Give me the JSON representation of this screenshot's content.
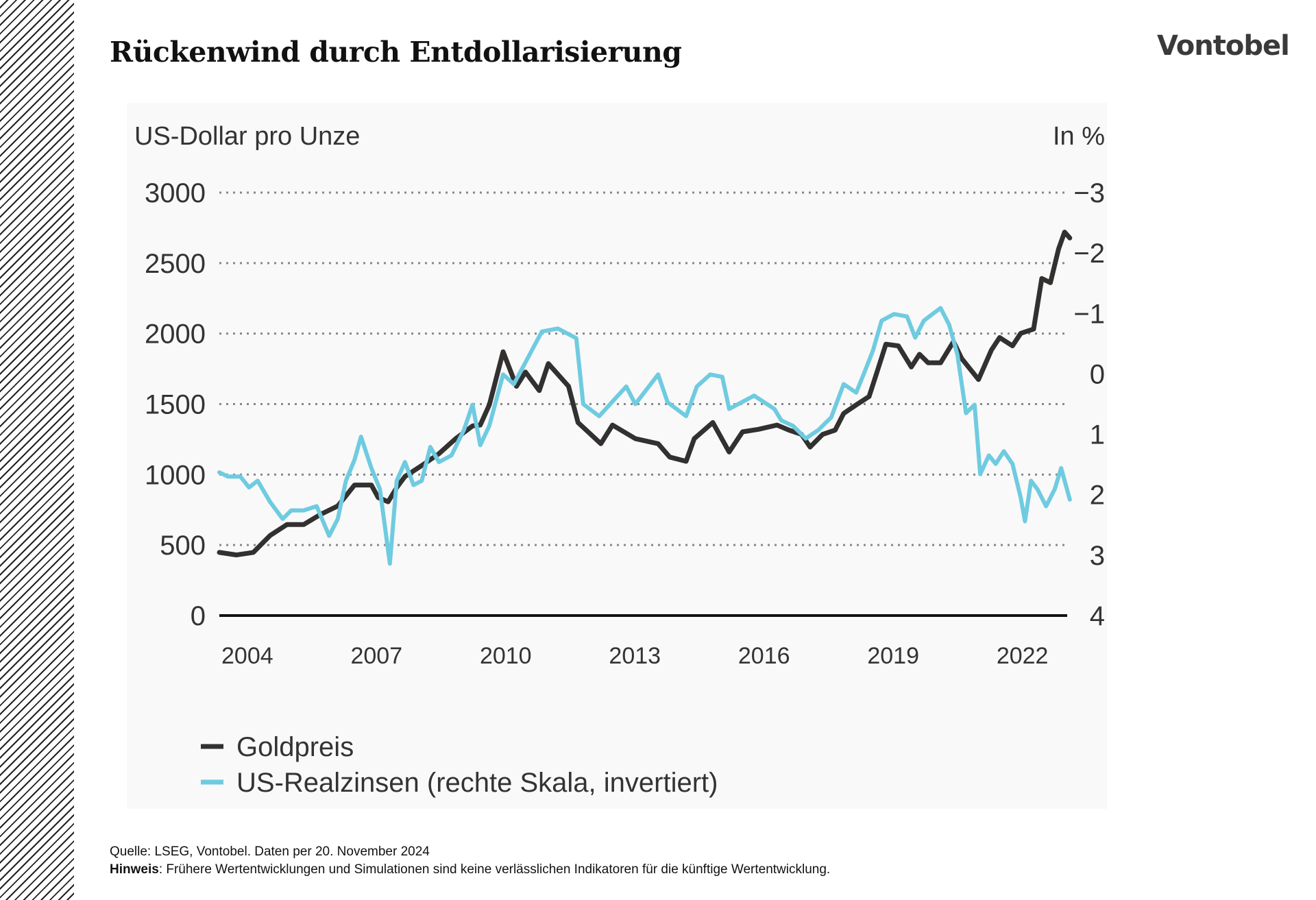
{
  "title": "Rückenwind durch Entdollarisierung",
  "logo": "Vontobel",
  "footer": {
    "source": "Quelle: LSEG, Vontobel. Daten per 20. November 2024",
    "note_label": "Hinweis",
    "note_text": ": Frühere Wertentwicklungen und Simulationen sind keine verlässlichen Indikatoren für die künftige Wertentwicklung."
  },
  "colors": {
    "gold": "#333030",
    "rates": "#6fcbe0",
    "grid": "#888888"
  },
  "chart_data": {
    "type": "line",
    "ylabel_left": "US-Dollar pro Unze",
    "ylabel_right": "In %",
    "xlim": [
      2003.3,
      2023.15
    ],
    "ylim_left": [
      0,
      3000
    ],
    "ylim_right": [
      4,
      -3
    ],
    "right_axis_inverted": true,
    "grid": "horizontal dotted",
    "x_ticks": [
      2004,
      2007,
      2010,
      2013,
      2016,
      2019,
      2022
    ],
    "y_ticks_left": [
      0,
      500,
      1000,
      1500,
      2000,
      2500,
      3000
    ],
    "y_ticks_right": [
      4,
      3,
      2,
      1,
      0,
      -1,
      -2,
      -3
    ],
    "y_tick_labels_right": [
      "4",
      "3",
      "2",
      "1",
      "0",
      "−1",
      "−2",
      "−3"
    ],
    "legend_placement": "bottom-left",
    "series": [
      {
        "name": "Goldpreis",
        "axis": "left",
        "color": "#333030",
        "x": [
          2003.35,
          2003.75,
          2004.14,
          2004.53,
          2004.92,
          2005.31,
          2005.7,
          2006.1,
          2006.49,
          2006.88,
          2007.04,
          2007.27,
          2007.47,
          2007.66,
          2008.05,
          2008.45,
          2008.84,
          2009.23,
          2009.41,
          2009.62,
          2009.94,
          2010.25,
          2010.46,
          2010.78,
          2010.99,
          2011.46,
          2011.68,
          2012.21,
          2012.48,
          2013.01,
          2013.54,
          2013.81,
          2014.19,
          2014.38,
          2014.81,
          2015.19,
          2015.5,
          2015.87,
          2016.3,
          2016.58,
          2016.87,
          2017.07,
          2017.36,
          2017.65,
          2017.85,
          2018.14,
          2018.44,
          2018.63,
          2018.83,
          2019.12,
          2019.42,
          2019.61,
          2019.81,
          2020.1,
          2020.4,
          2020.59,
          2020.98,
          2021.28,
          2021.47,
          2021.77,
          2021.96,
          2022.26,
          2022.45,
          2022.65,
          2022.84,
          2022.98,
          2023.1
        ],
        "values": [
          448,
          430,
          448,
          568,
          645,
          645,
          717,
          777,
          926,
          926,
          837,
          807,
          908,
          986,
          1064,
          1148,
          1255,
          1345,
          1351,
          1494,
          1871,
          1626,
          1727,
          1596,
          1787,
          1626,
          1369,
          1219,
          1351,
          1255,
          1219,
          1124,
          1094,
          1255,
          1369,
          1160,
          1303,
          1321,
          1351,
          1315,
          1285,
          1195,
          1285,
          1315,
          1434,
          1494,
          1554,
          1733,
          1925,
          1913,
          1763,
          1853,
          1793,
          1793,
          1943,
          1823,
          1674,
          1883,
          1972,
          1913,
          2002,
          2032,
          2391,
          2361,
          2600,
          2720,
          2678
        ]
      },
      {
        "name": "US-Realzinsen (rechte Skala, invertiert)",
        "axis": "right",
        "color": "#6fcbe0",
        "x": [
          2003.35,
          2003.55,
          2003.84,
          2004.04,
          2004.24,
          2004.53,
          2004.82,
          2005.02,
          2005.31,
          2005.61,
          2005.9,
          2006.1,
          2006.29,
          2006.49,
          2006.64,
          2006.88,
          2007.08,
          2007.31,
          2007.47,
          2007.66,
          2007.86,
          2008.05,
          2008.25,
          2008.45,
          2008.74,
          2009.03,
          2009.23,
          2009.41,
          2009.62,
          2009.94,
          2010.19,
          2010.84,
          2011.21,
          2011.64,
          2011.8,
          2012.17,
          2012.8,
          2013.01,
          2013.54,
          2013.76,
          2014.19,
          2014.44,
          2014.75,
          2015.03,
          2015.19,
          2015.77,
          2016.24,
          2016.4,
          2016.67,
          2016.97,
          2017.26,
          2017.56,
          2017.85,
          2018.14,
          2018.34,
          2018.53,
          2018.73,
          2019.02,
          2019.32,
          2019.51,
          2019.71,
          2019.91,
          2020.1,
          2020.3,
          2020.49,
          2020.69,
          2020.89,
          2021.02,
          2021.22,
          2021.38,
          2021.57,
          2021.77,
          2021.96,
          2022.06,
          2022.2,
          2022.35,
          2022.55,
          2022.75,
          2022.9,
          2023.1
        ],
        "values": [
          1.63,
          1.7,
          1.7,
          1.88,
          1.77,
          2.12,
          2.4,
          2.26,
          2.26,
          2.19,
          2.68,
          2.4,
          1.77,
          1.42,
          1.04,
          1.56,
          1.91,
          3.14,
          1.77,
          1.46,
          1.84,
          1.77,
          1.21,
          1.46,
          1.35,
          0.93,
          0.51,
          1.18,
          0.86,
          0.01,
          0.17,
          -0.7,
          -0.75,
          -0.59,
          0.5,
          0.7,
          0.21,
          0.5,
          0.01,
          0.47,
          0.7,
          0.21,
          0.01,
          0.05,
          0.58,
          0.36,
          0.58,
          0.77,
          0.86,
          1.07,
          0.93,
          0.72,
          0.17,
          0.31,
          -0.04,
          -0.39,
          -0.88,
          -0.99,
          -0.95,
          -0.6,
          -0.88,
          -0.99,
          -1.09,
          -0.81,
          -0.32,
          0.65,
          0.51,
          1.66,
          1.35,
          1.49,
          1.28,
          1.49,
          2.05,
          2.44,
          1.77,
          1.91,
          2.19,
          1.91,
          1.56,
          2.08
        ]
      }
    ]
  }
}
